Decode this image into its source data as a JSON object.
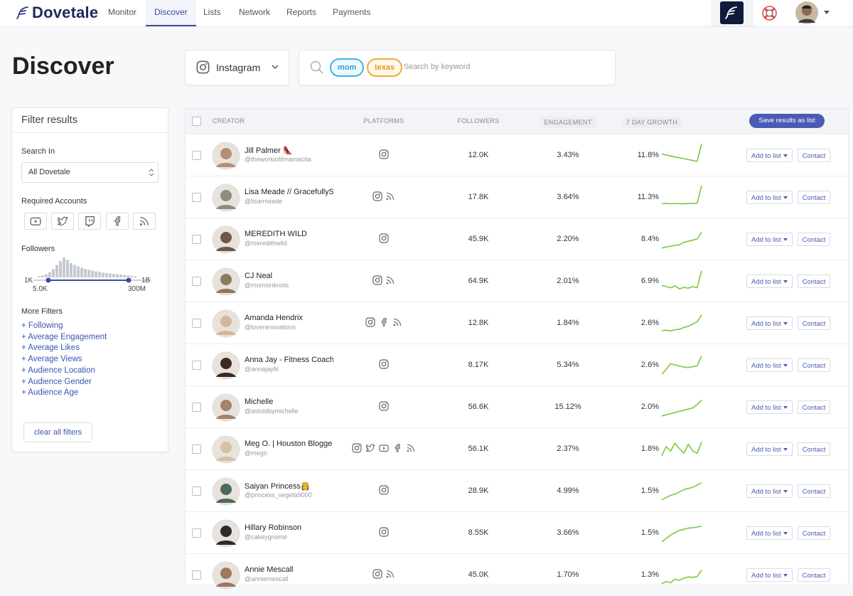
{
  "nav": {
    "brand": "Dovetale",
    "items": [
      "Monitor",
      "Discover",
      "Lists",
      "Network",
      "Reports",
      "Payments"
    ],
    "active": 1
  },
  "page_title": "Discover",
  "platform_select": "Instagram",
  "search": {
    "chips": [
      "mom",
      "texas"
    ],
    "placeholder": "Search by keyword"
  },
  "filters": {
    "title": "Filter results",
    "search_in_label": "Search In",
    "search_in_value": "All Dovetale",
    "required_accounts_label": "Required Accounts",
    "followers_label": "Followers",
    "followers_histogram": [
      6,
      10,
      16,
      26,
      42,
      62,
      82,
      100,
      88,
      72,
      62,
      55,
      48,
      42,
      38,
      34,
      30,
      27,
      24,
      22,
      20,
      18,
      16,
      14,
      12,
      10,
      8,
      6
    ],
    "range": {
      "min": "1K",
      "max": "1B",
      "low": "5.0K",
      "high": "300M"
    },
    "more_filters_label": "More Filters",
    "more_filters": [
      "+ Following",
      "+ Average Engagement",
      "+ Average Likes",
      "+ Average Views",
      "+ Audience Location",
      "+ Audience Gender",
      "+ Audience Age"
    ],
    "clear": "clear all filters"
  },
  "table": {
    "columns": [
      "CREATOR",
      "PLATFORMS",
      "FOLLOWERS",
      "ENGAGEMENT",
      "7 DAY GROWTH"
    ],
    "save_button": "Save results as list",
    "add_button": "Add to list",
    "contact_button": "Contact",
    "rows": [
      {
        "name": "Jill Palmer 👠",
        "handle": "@theworkinfitmamacita",
        "followers": "12.0K",
        "engagement": "3.43%",
        "growth": "11.8%",
        "trend": [
          55,
          50,
          46,
          42,
          38,
          34,
          30,
          26,
          22,
          100
        ]
      },
      {
        "name": "Lisa Meade // GracefullyS",
        "handle": "@lisarmeade",
        "followers": "17.8K",
        "engagement": "3.64%",
        "growth": "11.3%",
        "trend": [
          20,
          22,
          20,
          22,
          21,
          20,
          22,
          21,
          23,
          100
        ]
      },
      {
        "name": "MEREDITH WILD",
        "handle": "@meredithwild",
        "followers": "45.9K",
        "engagement": "2.20%",
        "growth": "8.4%",
        "trend": [
          10,
          15,
          18,
          22,
          25,
          35,
          40,
          45,
          50,
          80
        ]
      },
      {
        "name": "CJ Neal",
        "handle": "@momsinknots",
        "followers": "64.9K",
        "engagement": "2.01%",
        "growth": "6.9%",
        "trend": [
          30,
          25,
          20,
          28,
          15,
          22,
          18,
          25,
          20,
          95
        ]
      },
      {
        "name": "Amanda Hendrix",
        "handle": "@loverenovations",
        "followers": "12.8K",
        "engagement": "1.84%",
        "growth": "2.6%",
        "trend": [
          15,
          18,
          15,
          20,
          22,
          30,
          35,
          45,
          55,
          85
        ]
      },
      {
        "name": "Anna Jay - Fitness Coach",
        "handle": "@annajayfit",
        "followers": "8.17K",
        "engagement": "5.34%",
        "growth": "2.6%",
        "trend": [
          10,
          30,
          55,
          50,
          45,
          40,
          38,
          42,
          45,
          90
        ]
      },
      {
        "name": "Michelle",
        "handle": "@astoldbymichelle",
        "followers": "56.6K",
        "engagement": "15.12%",
        "growth": "2.0%",
        "trend": [
          10,
          15,
          20,
          25,
          30,
          35,
          40,
          45,
          60,
          80
        ]
      },
      {
        "name": "Meg O. | Houston Blogge",
        "handle": "@mego",
        "followers": "56.1K",
        "engagement": "2.37%",
        "growth": "1.8%",
        "trend": [
          20,
          60,
          40,
          75,
          50,
          30,
          70,
          40,
          30,
          80
        ]
      },
      {
        "name": "Saiyan Princess👸",
        "handle": "@princess_vegeta9000",
        "followers": "28.9K",
        "engagement": "4.99%",
        "growth": "1.5%",
        "trend": [
          10,
          20,
          30,
          35,
          45,
          55,
          60,
          65,
          75,
          85
        ]
      },
      {
        "name": "Hillary Robinson",
        "handle": "@cakeygnome",
        "followers": "8.55K",
        "engagement": "3.66%",
        "growth": "1.5%",
        "trend": [
          10,
          25,
          40,
          50,
          60,
          65,
          70,
          72,
          75,
          78
        ]
      },
      {
        "name": "Annie Mescall",
        "handle": "@anniemescall",
        "followers": "45.0K",
        "engagement": "1.70%",
        "growth": "1.3%",
        "trend": [
          10,
          20,
          15,
          30,
          25,
          35,
          40,
          38,
          42,
          70
        ]
      }
    ]
  }
}
